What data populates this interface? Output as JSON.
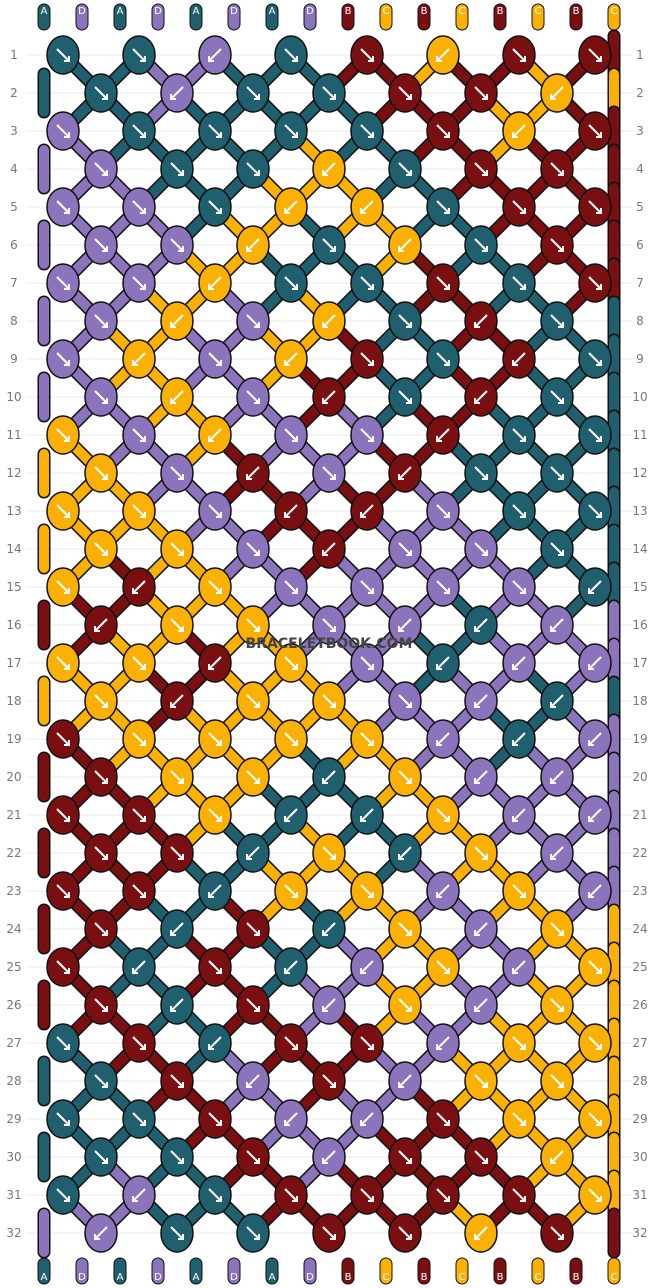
{
  "watermark": "BRACELETBOOK.COM",
  "colors": {
    "A": "#1f5f6e",
    "D": "#8c74bd",
    "B": "#7a0f12",
    "C": "#fbb103"
  },
  "strings_top": [
    "A",
    "D",
    "A",
    "D",
    "A",
    "D",
    "A",
    "D",
    "B",
    "C",
    "B",
    "C",
    "B",
    "C",
    "B",
    "C"
  ],
  "strings_bottom": [
    "A",
    "D",
    "A",
    "D",
    "A",
    "D",
    "A",
    "D",
    "B",
    "C",
    "B",
    "C",
    "B",
    "C",
    "B",
    "C"
  ],
  "rows": [
    {
      "num": "1",
      "knots": [
        [
          "A",
          "se"
        ],
        [
          "A",
          "se"
        ],
        [
          "D",
          "sw"
        ],
        [
          "A",
          "se"
        ],
        [
          "B",
          "se"
        ],
        [
          "C",
          "sw"
        ],
        [
          "B",
          "se"
        ],
        [
          "B",
          "se"
        ]
      ]
    },
    {
      "num": "2",
      "knots": [
        [
          "A",
          "se"
        ],
        [
          "D",
          "sw"
        ],
        [
          "A",
          "se"
        ],
        [
          "A",
          "se"
        ],
        [
          "B",
          "se"
        ],
        [
          "B",
          "se"
        ],
        [
          "C",
          "sw"
        ]
      ]
    },
    {
      "num": "3",
      "knots": [
        [
          "D",
          "se"
        ],
        [
          "A",
          "se"
        ],
        [
          "A",
          "se"
        ],
        [
          "A",
          "se"
        ],
        [
          "A",
          "se"
        ],
        [
          "B",
          "se"
        ],
        [
          "C",
          "sw"
        ],
        [
          "B",
          "se"
        ]
      ]
    },
    {
      "num": "4",
      "knots": [
        [
          "D",
          "se"
        ],
        [
          "A",
          "se"
        ],
        [
          "A",
          "se"
        ],
        [
          "C",
          "sw"
        ],
        [
          "A",
          "se"
        ],
        [
          "B",
          "se"
        ],
        [
          "B",
          "se"
        ]
      ]
    },
    {
      "num": "5",
      "knots": [
        [
          "D",
          "se"
        ],
        [
          "D",
          "se"
        ],
        [
          "A",
          "se"
        ],
        [
          "C",
          "sw"
        ],
        [
          "C",
          "sw"
        ],
        [
          "A",
          "se"
        ],
        [
          "B",
          "se"
        ],
        [
          "B",
          "se"
        ]
      ]
    },
    {
      "num": "6",
      "knots": [
        [
          "D",
          "se"
        ],
        [
          "D",
          "se"
        ],
        [
          "C",
          "sw"
        ],
        [
          "A",
          "se"
        ],
        [
          "C",
          "sw"
        ],
        [
          "A",
          "se"
        ],
        [
          "B",
          "se"
        ]
      ]
    },
    {
      "num": "7",
      "knots": [
        [
          "D",
          "se"
        ],
        [
          "D",
          "se"
        ],
        [
          "C",
          "sw"
        ],
        [
          "A",
          "se"
        ],
        [
          "A",
          "se"
        ],
        [
          "B",
          "se"
        ],
        [
          "A",
          "se"
        ],
        [
          "B",
          "se"
        ]
      ]
    },
    {
      "num": "8",
      "knots": [
        [
          "D",
          "se"
        ],
        [
          "C",
          "sw"
        ],
        [
          "D",
          "se"
        ],
        [
          "C",
          "sw"
        ],
        [
          "A",
          "se"
        ],
        [
          "B",
          "sw"
        ],
        [
          "A",
          "se"
        ]
      ]
    },
    {
      "num": "9",
      "knots": [
        [
          "D",
          "se"
        ],
        [
          "C",
          "sw"
        ],
        [
          "D",
          "se"
        ],
        [
          "C",
          "sw"
        ],
        [
          "B",
          "se"
        ],
        [
          "A",
          "se"
        ],
        [
          "B",
          "sw"
        ],
        [
          "A",
          "se"
        ]
      ]
    },
    {
      "num": "10",
      "knots": [
        [
          "D",
          "se"
        ],
        [
          "C",
          "sw"
        ],
        [
          "D",
          "se"
        ],
        [
          "B",
          "sw"
        ],
        [
          "A",
          "se"
        ],
        [
          "B",
          "sw"
        ],
        [
          "A",
          "se"
        ]
      ]
    },
    {
      "num": "11",
      "knots": [
        [
          "C",
          "se"
        ],
        [
          "D",
          "se"
        ],
        [
          "C",
          "sw"
        ],
        [
          "D",
          "se"
        ],
        [
          "D",
          "se"
        ],
        [
          "B",
          "sw"
        ],
        [
          "A",
          "se"
        ],
        [
          "A",
          "se"
        ]
      ]
    },
    {
      "num": "12",
      "knots": [
        [
          "C",
          "se"
        ],
        [
          "D",
          "se"
        ],
        [
          "B",
          "sw"
        ],
        [
          "D",
          "se"
        ],
        [
          "B",
          "sw"
        ],
        [
          "A",
          "se"
        ],
        [
          "A",
          "se"
        ]
      ]
    },
    {
      "num": "13",
      "knots": [
        [
          "C",
          "se"
        ],
        [
          "C",
          "se"
        ],
        [
          "D",
          "se"
        ],
        [
          "B",
          "sw"
        ],
        [
          "B",
          "sw"
        ],
        [
          "D",
          "se"
        ],
        [
          "A",
          "se"
        ],
        [
          "A",
          "se"
        ]
      ]
    },
    {
      "num": "14",
      "knots": [
        [
          "C",
          "se"
        ],
        [
          "C",
          "se"
        ],
        [
          "D",
          "se"
        ],
        [
          "B",
          "sw"
        ],
        [
          "D",
          "se"
        ],
        [
          "D",
          "se"
        ],
        [
          "A",
          "se"
        ]
      ]
    },
    {
      "num": "15",
      "knots": [
        [
          "C",
          "se"
        ],
        [
          "B",
          "sw"
        ],
        [
          "C",
          "se"
        ],
        [
          "D",
          "se"
        ],
        [
          "D",
          "se"
        ],
        [
          "D",
          "se"
        ],
        [
          "D",
          "se"
        ],
        [
          "A",
          "sw"
        ]
      ]
    },
    {
      "num": "16",
      "knots": [
        [
          "B",
          "sw"
        ],
        [
          "C",
          "se"
        ],
        [
          "C",
          "se"
        ],
        [
          "D",
          "se"
        ],
        [
          "D",
          "sw"
        ],
        [
          "A",
          "sw"
        ],
        [
          "D",
          "sw"
        ]
      ]
    },
    {
      "num": "17",
      "knots": [
        [
          "C",
          "se"
        ],
        [
          "C",
          "se"
        ],
        [
          "B",
          "sw"
        ],
        [
          "C",
          "se"
        ],
        [
          "D",
          "se"
        ],
        [
          "A",
          "sw"
        ],
        [
          "D",
          "sw"
        ],
        [
          "D",
          "sw"
        ]
      ]
    },
    {
      "num": "18",
      "knots": [
        [
          "C",
          "se"
        ],
        [
          "B",
          "sw"
        ],
        [
          "C",
          "se"
        ],
        [
          "C",
          "se"
        ],
        [
          "D",
          "se"
        ],
        [
          "D",
          "sw"
        ],
        [
          "A",
          "sw"
        ]
      ]
    },
    {
      "num": "19",
      "knots": [
        [
          "B",
          "se"
        ],
        [
          "C",
          "se"
        ],
        [
          "C",
          "se"
        ],
        [
          "C",
          "se"
        ],
        [
          "C",
          "se"
        ],
        [
          "D",
          "sw"
        ],
        [
          "A",
          "sw"
        ],
        [
          "D",
          "sw"
        ]
      ]
    },
    {
      "num": "20",
      "knots": [
        [
          "B",
          "se"
        ],
        [
          "C",
          "se"
        ],
        [
          "C",
          "se"
        ],
        [
          "A",
          "sw"
        ],
        [
          "C",
          "se"
        ],
        [
          "D",
          "sw"
        ],
        [
          "D",
          "sw"
        ]
      ]
    },
    {
      "num": "21",
      "knots": [
        [
          "B",
          "se"
        ],
        [
          "B",
          "se"
        ],
        [
          "C",
          "se"
        ],
        [
          "A",
          "sw"
        ],
        [
          "A",
          "sw"
        ],
        [
          "C",
          "se"
        ],
        [
          "D",
          "sw"
        ],
        [
          "D",
          "sw"
        ]
      ]
    },
    {
      "num": "22",
      "knots": [
        [
          "B",
          "se"
        ],
        [
          "B",
          "se"
        ],
        [
          "A",
          "sw"
        ],
        [
          "C",
          "se"
        ],
        [
          "A",
          "sw"
        ],
        [
          "C",
          "se"
        ],
        [
          "D",
          "sw"
        ]
      ]
    },
    {
      "num": "23",
      "knots": [
        [
          "B",
          "se"
        ],
        [
          "B",
          "se"
        ],
        [
          "A",
          "sw"
        ],
        [
          "C",
          "se"
        ],
        [
          "C",
          "se"
        ],
        [
          "D",
          "sw"
        ],
        [
          "C",
          "se"
        ],
        [
          "D",
          "sw"
        ]
      ]
    },
    {
      "num": "24",
      "knots": [
        [
          "B",
          "se"
        ],
        [
          "A",
          "sw"
        ],
        [
          "B",
          "se"
        ],
        [
          "A",
          "sw"
        ],
        [
          "C",
          "se"
        ],
        [
          "D",
          "sw"
        ],
        [
          "C",
          "se"
        ]
      ]
    },
    {
      "num": "25",
      "knots": [
        [
          "B",
          "se"
        ],
        [
          "A",
          "sw"
        ],
        [
          "B",
          "se"
        ],
        [
          "A",
          "sw"
        ],
        [
          "D",
          "sw"
        ],
        [
          "C",
          "se"
        ],
        [
          "D",
          "sw"
        ],
        [
          "C",
          "se"
        ]
      ]
    },
    {
      "num": "26",
      "knots": [
        [
          "B",
          "se"
        ],
        [
          "A",
          "sw"
        ],
        [
          "B",
          "se"
        ],
        [
          "D",
          "sw"
        ],
        [
          "C",
          "se"
        ],
        [
          "D",
          "sw"
        ],
        [
          "C",
          "se"
        ]
      ]
    },
    {
      "num": "27",
      "knots": [
        [
          "A",
          "se"
        ],
        [
          "B",
          "se"
        ],
        [
          "A",
          "sw"
        ],
        [
          "B",
          "se"
        ],
        [
          "B",
          "se"
        ],
        [
          "D",
          "sw"
        ],
        [
          "C",
          "se"
        ],
        [
          "C",
          "se"
        ]
      ]
    },
    {
      "num": "28",
      "knots": [
        [
          "A",
          "se"
        ],
        [
          "B",
          "se"
        ],
        [
          "D",
          "sw"
        ],
        [
          "B",
          "se"
        ],
        [
          "D",
          "sw"
        ],
        [
          "C",
          "se"
        ],
        [
          "C",
          "se"
        ]
      ]
    },
    {
      "num": "29",
      "knots": [
        [
          "A",
          "se"
        ],
        [
          "A",
          "se"
        ],
        [
          "B",
          "se"
        ],
        [
          "D",
          "sw"
        ],
        [
          "D",
          "sw"
        ],
        [
          "B",
          "se"
        ],
        [
          "C",
          "se"
        ],
        [
          "C",
          "se"
        ]
      ]
    },
    {
      "num": "30",
      "knots": [
        [
          "A",
          "se"
        ],
        [
          "A",
          "se"
        ],
        [
          "B",
          "se"
        ],
        [
          "D",
          "sw"
        ],
        [
          "B",
          "se"
        ],
        [
          "B",
          "se"
        ],
        [
          "C",
          "sw"
        ]
      ]
    },
    {
      "num": "31",
      "knots": [
        [
          "A",
          "se"
        ],
        [
          "D",
          "sw"
        ],
        [
          "A",
          "se"
        ],
        [
          "B",
          "se"
        ],
        [
          "B",
          "se"
        ],
        [
          "B",
          "se"
        ],
        [
          "B",
          "se"
        ],
        [
          "C",
          "se"
        ]
      ]
    },
    {
      "num": "32",
      "knots": [
        [
          "D",
          "sw"
        ],
        [
          "A",
          "se"
        ],
        [
          "A",
          "se"
        ],
        [
          "B",
          "se"
        ],
        [
          "B",
          "se"
        ],
        [
          "C",
          "sw"
        ],
        [
          "B",
          "se"
        ]
      ]
    }
  ]
}
